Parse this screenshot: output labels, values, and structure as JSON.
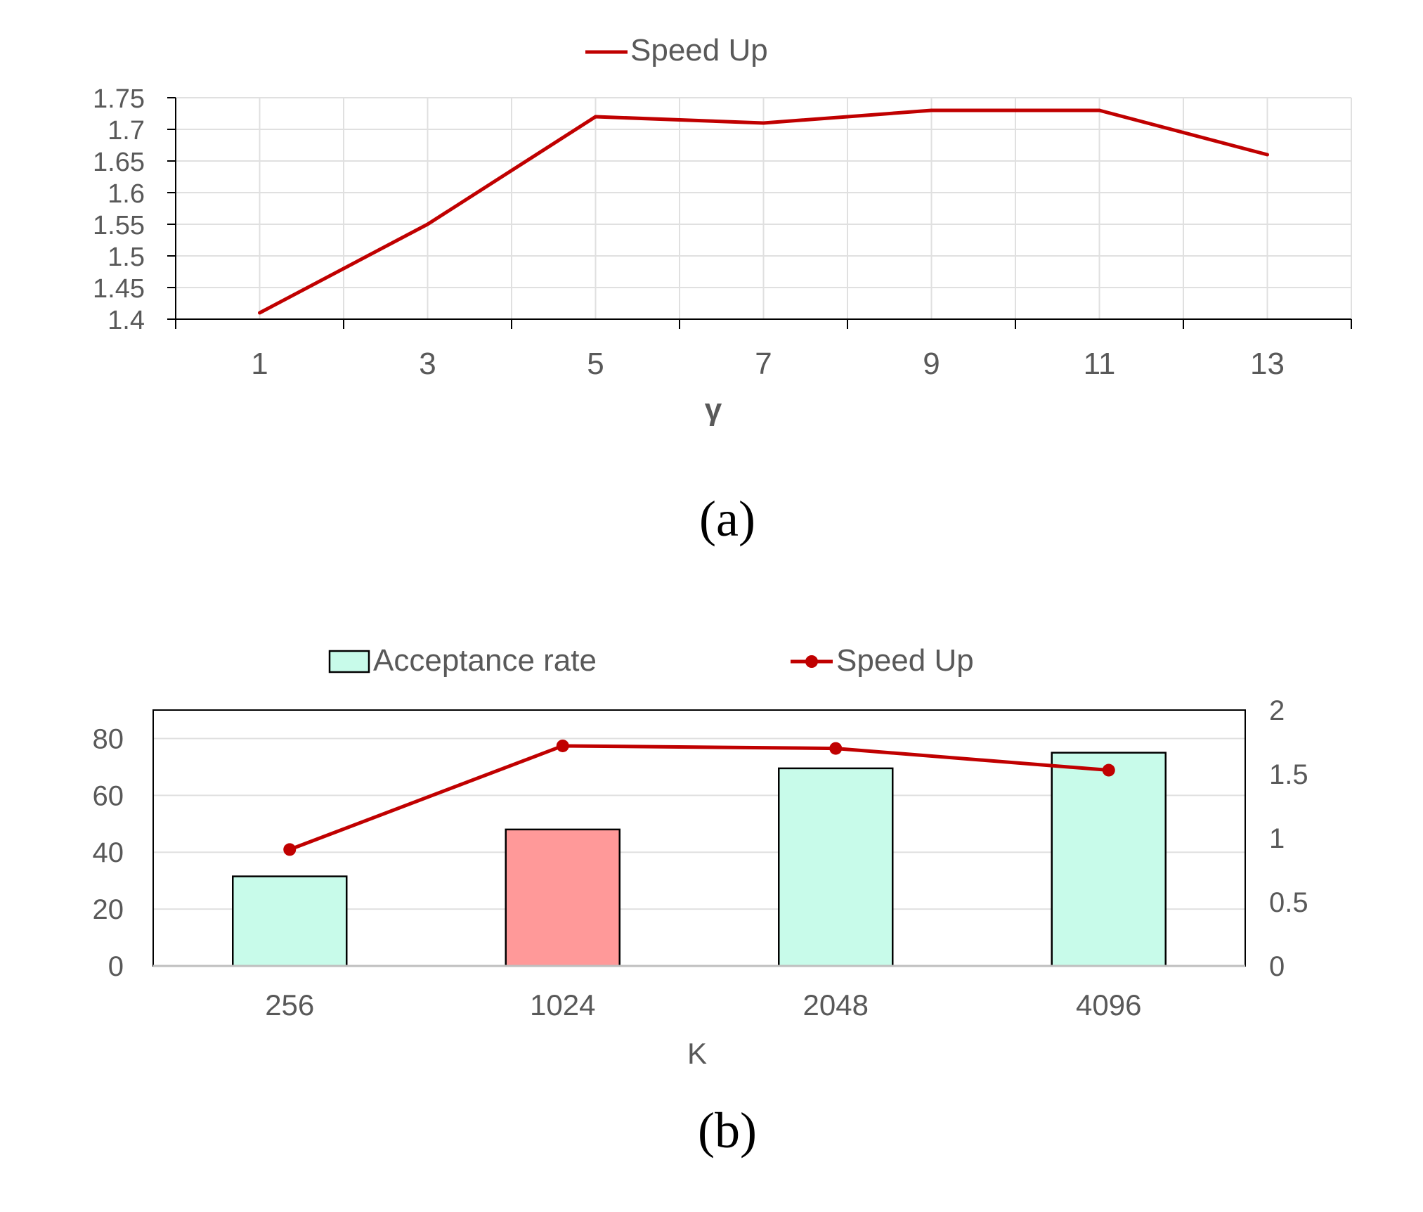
{
  "colors": {
    "line": "#C00000",
    "bar_default": "#C8FBEA",
    "bar_highlight": "#FF9999",
    "text": "#595959",
    "grid": "#E0E0E0",
    "axis": "#000000"
  },
  "chart_data": [
    {
      "type": "line",
      "caption": "(a)",
      "xlabel": "γ",
      "ylabel": "",
      "ylim": [
        1.4,
        1.75
      ],
      "yticks": [
        "1.4",
        "1.45",
        "1.5",
        "1.55",
        "1.6",
        "1.65",
        "1.7",
        "1.75"
      ],
      "xtick_labels": [
        "1",
        "3",
        "5",
        "7",
        "9",
        "11",
        "13"
      ],
      "grid": true,
      "legend_position": "top-center",
      "series": [
        {
          "name": "Speed Up",
          "x": [
            1,
            3,
            5,
            7,
            9,
            11,
            13
          ],
          "values": [
            1.41,
            1.55,
            1.72,
            1.71,
            1.73,
            1.73,
            1.66
          ]
        }
      ]
    },
    {
      "type": "bar",
      "caption": "(b)",
      "xlabel": "K",
      "categories": [
        "256",
        "1024",
        "2048",
        "4096"
      ],
      "ylim_left": [
        0,
        90
      ],
      "yticks_left": [
        "0",
        "20",
        "40",
        "60",
        "80"
      ],
      "ylim_right": [
        0,
        2
      ],
      "yticks_right": [
        "0",
        "0.5",
        "1",
        "1.5",
        "2"
      ],
      "grid": true,
      "legend_position": "top-center",
      "highlight_category": "1024",
      "series": [
        {
          "name": "Acceptance rate",
          "type": "bar",
          "axis": "left",
          "values": [
            31.5,
            48,
            69.5,
            75
          ]
        },
        {
          "name": "Speed Up",
          "type": "line",
          "axis": "right",
          "values": [
            0.91,
            1.72,
            1.7,
            1.53
          ]
        }
      ]
    }
  ]
}
